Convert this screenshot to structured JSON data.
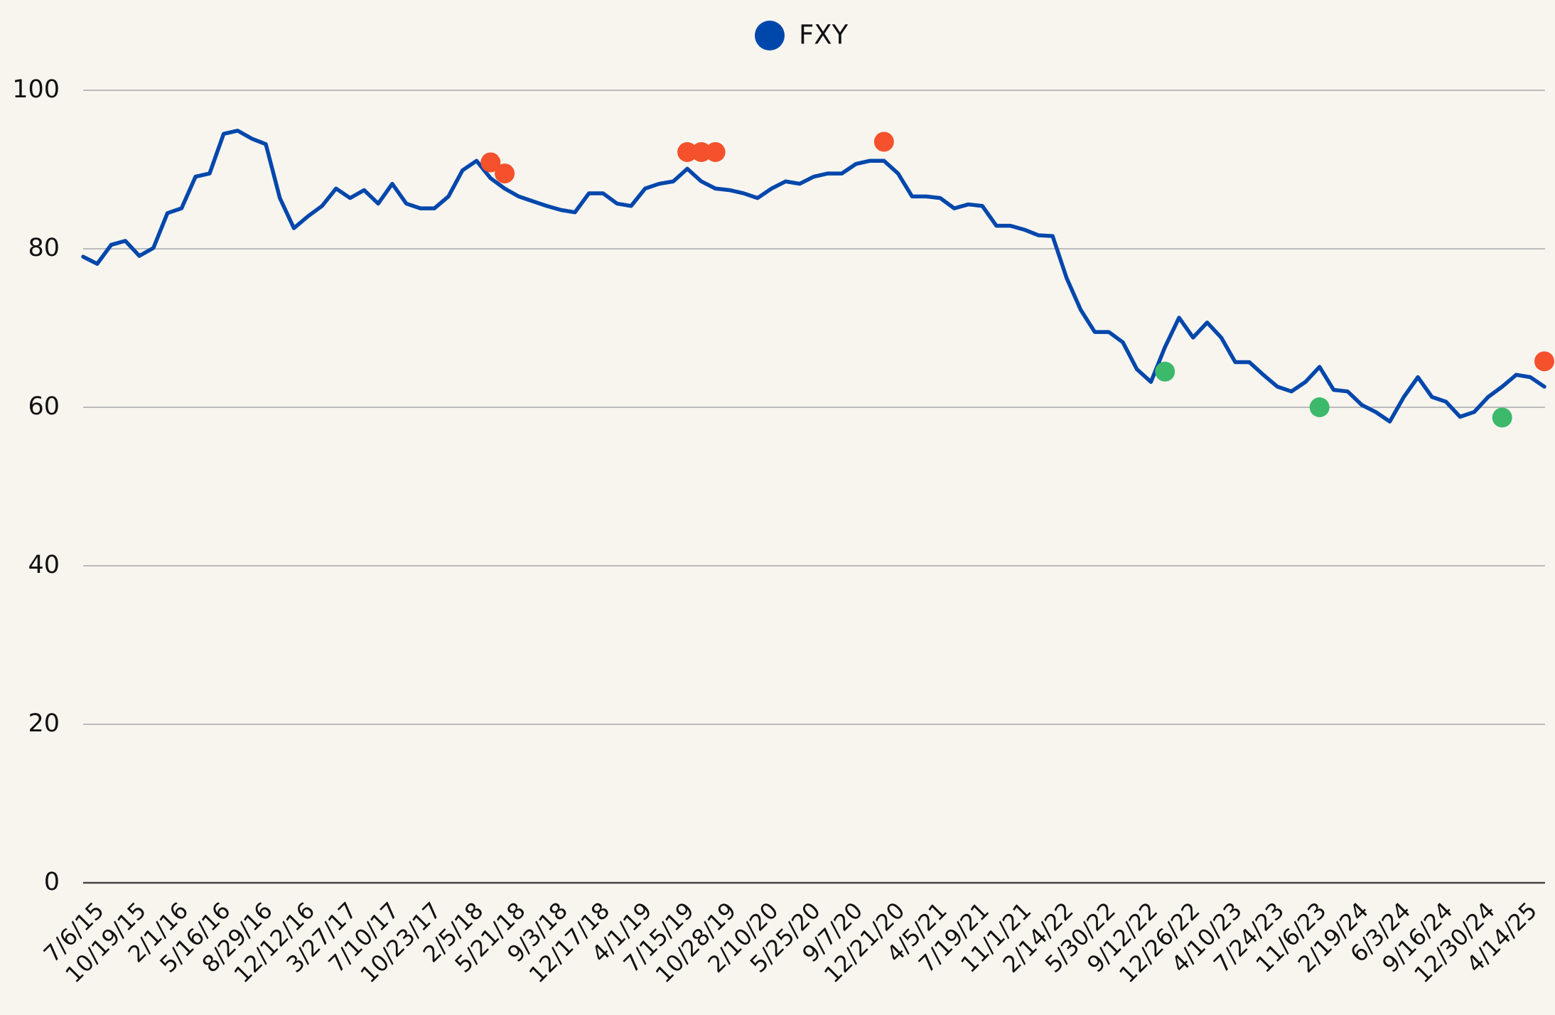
{
  "chart_data": {
    "type": "line",
    "categories": [
      "7/6/15",
      null,
      null,
      "10/19/15",
      null,
      null,
      "2/1/16",
      null,
      null,
      "5/16/16",
      null,
      null,
      "8/29/16",
      null,
      null,
      "12/12/16",
      null,
      null,
      "3/27/17",
      null,
      null,
      "7/10/17",
      null,
      null,
      "10/23/17",
      null,
      null,
      "2/5/18",
      null,
      null,
      "5/21/18",
      null,
      null,
      "9/3/18",
      null,
      null,
      "12/17/18",
      null,
      null,
      "4/1/19",
      null,
      null,
      "7/15/19",
      null,
      null,
      "10/28/19",
      null,
      null,
      "2/10/20",
      null,
      null,
      "5/25/20",
      null,
      null,
      "9/7/20",
      null,
      null,
      "12/21/20",
      null,
      null,
      "4/5/21",
      null,
      null,
      "7/19/21",
      null,
      null,
      "11/1/21",
      null,
      null,
      "2/14/22",
      null,
      null,
      "5/30/22",
      null,
      null,
      "9/12/22",
      null,
      null,
      "12/26/22",
      null,
      null,
      "4/10/23",
      null,
      null,
      "7/24/23",
      null,
      null,
      "11/6/23",
      null,
      null,
      "2/19/24",
      null,
      null,
      "6/3/24",
      null,
      null,
      "9/16/24",
      null,
      null,
      "12/30/24",
      null,
      null,
      "4/14/25",
      null,
      null
    ],
    "series": [
      {
        "name": "FXY",
        "color": "#0047ab",
        "values": [
          79.0,
          78.1,
          80.5,
          81.0,
          79.1,
          80.1,
          84.5,
          85.1,
          89.1,
          89.5,
          94.5,
          94.9,
          93.9,
          93.2,
          86.4,
          82.6,
          84.1,
          85.4,
          87.6,
          86.4,
          87.4,
          85.7,
          88.2,
          85.7,
          85.1,
          85.1,
          86.6,
          89.9,
          91.1,
          88.9,
          87.6,
          86.6,
          86.0,
          85.4,
          84.9,
          84.6,
          87.0,
          87.0,
          85.7,
          85.4,
          87.6,
          88.2,
          88.5,
          90.1,
          88.5,
          87.6,
          87.4,
          87.0,
          86.4,
          87.6,
          88.5,
          88.2,
          89.1,
          89.5,
          89.5,
          90.7,
          91.1,
          91.1,
          89.5,
          86.6,
          86.6,
          86.4,
          85.1,
          85.6,
          85.4,
          82.9,
          82.9,
          82.4,
          81.7,
          81.6,
          76.3,
          72.3,
          69.5,
          69.5,
          68.2,
          64.8,
          63.2,
          67.6,
          71.3,
          68.8,
          70.7,
          68.8,
          65.7,
          65.7,
          64.1,
          62.6,
          62.0,
          63.2,
          65.1,
          62.2,
          62.0,
          60.3,
          59.4,
          58.2,
          61.3,
          63.8,
          61.3,
          60.7,
          58.8,
          59.4,
          61.3,
          62.6,
          64.1,
          63.8,
          62.6
        ]
      }
    ],
    "markers": [
      {
        "color": "#f4512c",
        "values": [
          null,
          null,
          null,
          null,
          null,
          null,
          null,
          null,
          null,
          null,
          null,
          null,
          null,
          null,
          null,
          null,
          null,
          null,
          null,
          null,
          null,
          null,
          null,
          null,
          null,
          null,
          null,
          null,
          null,
          90.9,
          89.5,
          null,
          null,
          null,
          null,
          null,
          null,
          null,
          null,
          null,
          null,
          null,
          null,
          92.2,
          92.2,
          92.2,
          null,
          null,
          null,
          null,
          null,
          null,
          null,
          null,
          null,
          null,
          null,
          93.5,
          null,
          null,
          null,
          null,
          null,
          null,
          null,
          null,
          null,
          null,
          null,
          null,
          null,
          null,
          null,
          null,
          null,
          null,
          null,
          null,
          null,
          null,
          null,
          null,
          null,
          null,
          null,
          null,
          null,
          null,
          null,
          null,
          null,
          null,
          null,
          null,
          null,
          null,
          null,
          null,
          null,
          null,
          null,
          null,
          null,
          null,
          65.8
        ]
      },
      {
        "color": "#3cb96b",
        "values": [
          null,
          null,
          null,
          null,
          null,
          null,
          null,
          null,
          null,
          null,
          null,
          null,
          null,
          null,
          null,
          null,
          null,
          null,
          null,
          null,
          null,
          null,
          null,
          null,
          null,
          null,
          null,
          null,
          null,
          null,
          null,
          null,
          null,
          null,
          null,
          null,
          null,
          null,
          null,
          null,
          null,
          null,
          null,
          null,
          null,
          null,
          null,
          null,
          null,
          null,
          null,
          null,
          null,
          null,
          null,
          null,
          null,
          null,
          null,
          null,
          null,
          null,
          null,
          null,
          null,
          null,
          null,
          null,
          null,
          null,
          null,
          null,
          null,
          null,
          null,
          null,
          null,
          64.5,
          null,
          null,
          null,
          null,
          null,
          null,
          null,
          null,
          null,
          null,
          60.0,
          null,
          null,
          null,
          null,
          null,
          null,
          null,
          null,
          null,
          null,
          null,
          null,
          58.7,
          null,
          null,
          null
        ]
      }
    ],
    "ylim": [
      0,
      100
    ],
    "yticks": [
      0,
      20,
      40,
      60,
      80,
      100
    ],
    "grid": true
  }
}
